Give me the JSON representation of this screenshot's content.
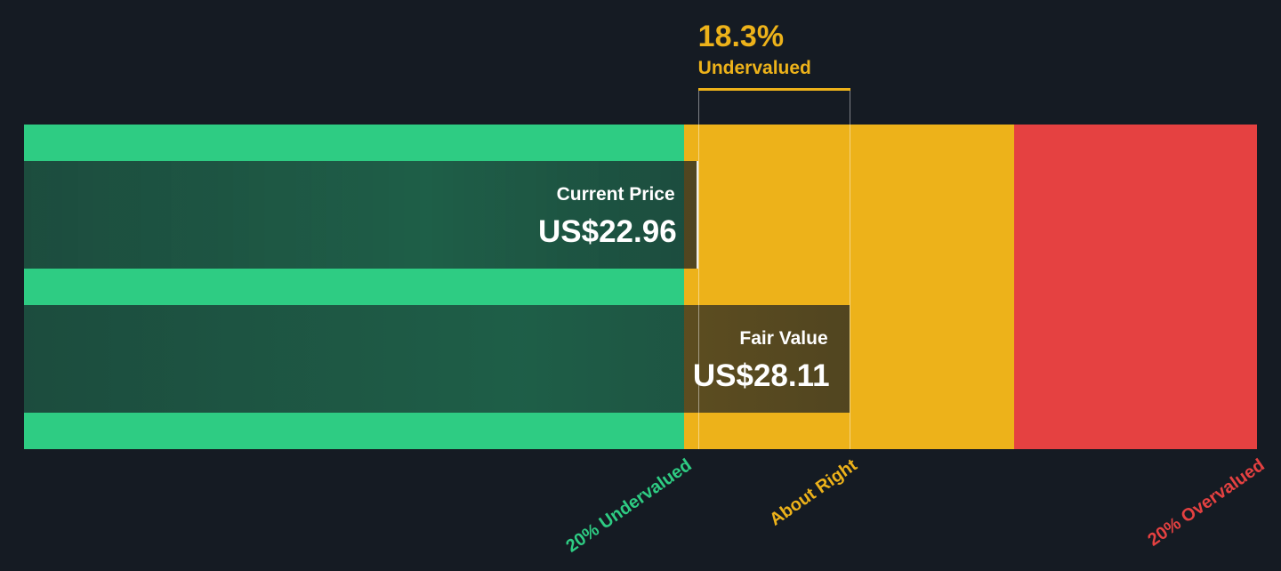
{
  "chart_data": {
    "type": "bar",
    "orientation": "horizontal",
    "categories": [
      "Current Price",
      "Fair Value"
    ],
    "values": [
      22.96,
      28.11
    ],
    "value_labels": [
      "US$22.96",
      "US$28.11"
    ],
    "currency": "US$",
    "xlim": [
      0,
      42.0
    ],
    "zones": [
      {
        "label": "20% Undervalued",
        "to": 0.8,
        "color": "#2ecc83"
      },
      {
        "label": "About Right",
        "to": 1.2,
        "color": "#edb21a"
      },
      {
        "label": "20% Overvalued",
        "to": 1.7,
        "color": "#e54141"
      }
    ],
    "annotation": {
      "value": "18.3%",
      "label": "Undervalued",
      "color": "#edb21a"
    }
  }
}
